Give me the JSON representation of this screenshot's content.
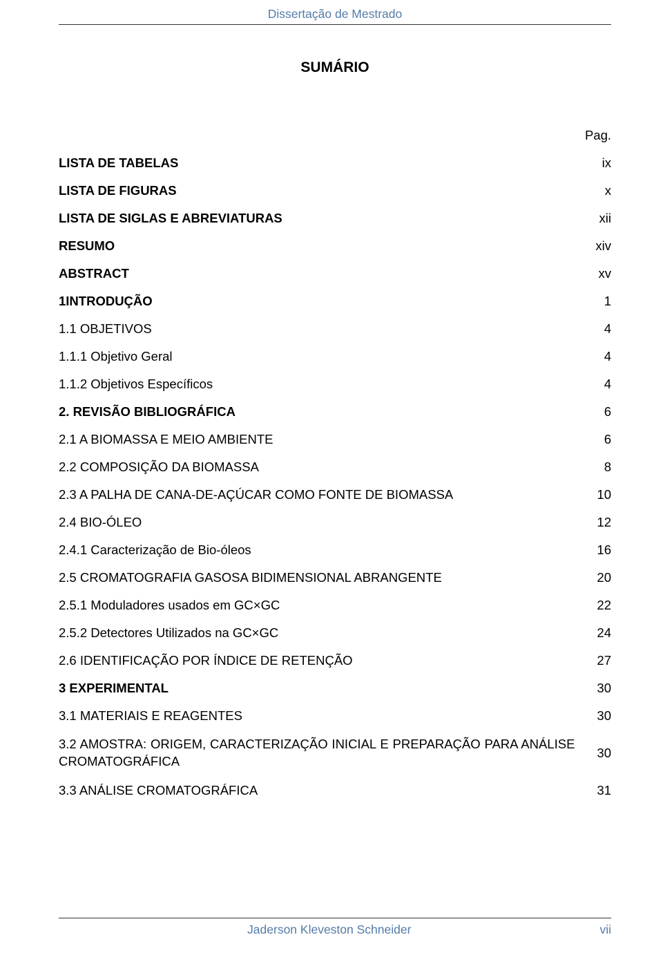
{
  "header": {
    "title": "Dissertação de Mestrado"
  },
  "main_title": "SUMÁRIO",
  "page_label": "Pag.",
  "toc": [
    {
      "label": "LISTA DE TABELAS",
      "page": "ix",
      "bold": true
    },
    {
      "label": "LISTA DE FIGURAS",
      "page": "x",
      "bold": true
    },
    {
      "label": "LISTA DE SIGLAS E ABREVIATURAS",
      "page": "xii",
      "bold": true
    },
    {
      "label": "RESUMO",
      "page": "xiv",
      "bold": true
    },
    {
      "label": "ABSTRACT",
      "page": "xv",
      "bold": true
    },
    {
      "label": "1INTRODUÇÃO",
      "page": "1",
      "bold": true
    },
    {
      "label": "1.1 OBJETIVOS",
      "page": "4",
      "bold": false
    },
    {
      "label": "1.1.1 Objetivo Geral",
      "page": "4",
      "bold": false
    },
    {
      "label": "1.1.2 Objetivos Específicos",
      "page": "4",
      "bold": false
    },
    {
      "label": "2. REVISÃO BIBLIOGRÁFICA",
      "page": "6",
      "bold": true
    },
    {
      "label": "2.1 A BIOMASSA E MEIO AMBIENTE",
      "page": "6",
      "bold": false
    },
    {
      "label": "2.2 COMPOSIÇÃO DA BIOMASSA",
      "page": "8",
      "bold": false
    },
    {
      "label": "2.3 A PALHA DE CANA-DE-AÇÚCAR COMO FONTE DE BIOMASSA",
      "page": "10",
      "bold": false
    },
    {
      "label": "2.4 BIO-ÓLEO",
      "page": "12",
      "bold": false
    },
    {
      "label": "2.4.1 Caracterização de Bio-óleos",
      "page": "16",
      "bold": false
    },
    {
      "label": "2.5 CROMATOGRAFIA GASOSA BIDIMENSIONAL ABRANGENTE",
      "page": "20",
      "bold": false
    },
    {
      "label": "2.5.1 Moduladores usados em GC×GC",
      "page": "22",
      "bold": false
    },
    {
      "label": "2.5.2 Detectores Utilizados na GC×GC",
      "page": "24",
      "bold": false
    },
    {
      "label": "2.6 IDENTIFICAÇÃO POR ÍNDICE DE RETENÇÃO",
      "page": "27",
      "bold": false
    },
    {
      "label": "3 EXPERIMENTAL",
      "page": "30",
      "bold": true
    },
    {
      "label": "3.1 MATERIAIS E REAGENTES",
      "page": "30",
      "bold": false
    },
    {
      "label": "3.2 AMOSTRA: ORIGEM, CARACTERIZAÇÃO INICIAL E PREPARAÇÃO PARA ANÁLISE CROMATOGRÁFICA",
      "page": "30",
      "bold": false,
      "multiline": true
    },
    {
      "label": "3.3 ANÁLISE CROMATOGRÁFICA",
      "page": "31",
      "bold": false
    }
  ],
  "footer": {
    "author": "Jaderson Kleveston Schneider",
    "page_number": "vii"
  },
  "colors": {
    "header_text": "#557ba8",
    "body_text": "#000000",
    "rule": "#333333",
    "background": "#ffffff"
  },
  "typography": {
    "header_fontsize": 17.5,
    "title_fontsize": 21,
    "body_fontsize": 18.5,
    "font_family": "Arial"
  }
}
